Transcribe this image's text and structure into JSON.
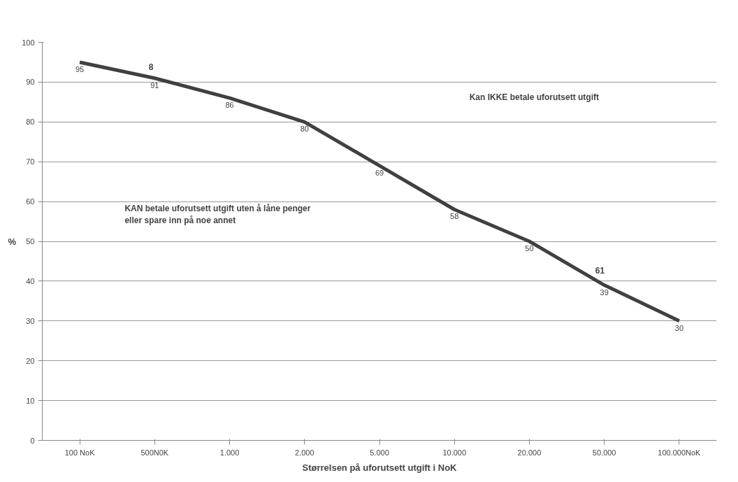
{
  "chart_data": {
    "type": "line",
    "xlabel": "Størrelsen på uforutsett utgift i NoK",
    "ylabel": "%",
    "categories": [
      "100 NoK",
      "500N0K",
      "1.000",
      "2.000",
      "5.000",
      "10.000",
      "20.000",
      "50.000",
      "100.000NoK"
    ],
    "series": [
      {
        "color": "#404040",
        "values": [
          95,
          91,
          86,
          80,
          69,
          58,
          50,
          39,
          30
        ]
      }
    ],
    "ylim": [
      0,
      100
    ],
    "yticks": [
      0,
      10,
      20,
      30,
      40,
      50,
      60,
      70,
      80,
      90,
      100
    ],
    "grid": "y",
    "data_labels": true,
    "marker": "none",
    "line_style": "solid",
    "annotations": [
      "Kan IKKE betale uforutsett utgift",
      "KAN betale uforutsett utgift uten å låne penger\neller spare inn på noe annet",
      "8",
      "61"
    ]
  }
}
